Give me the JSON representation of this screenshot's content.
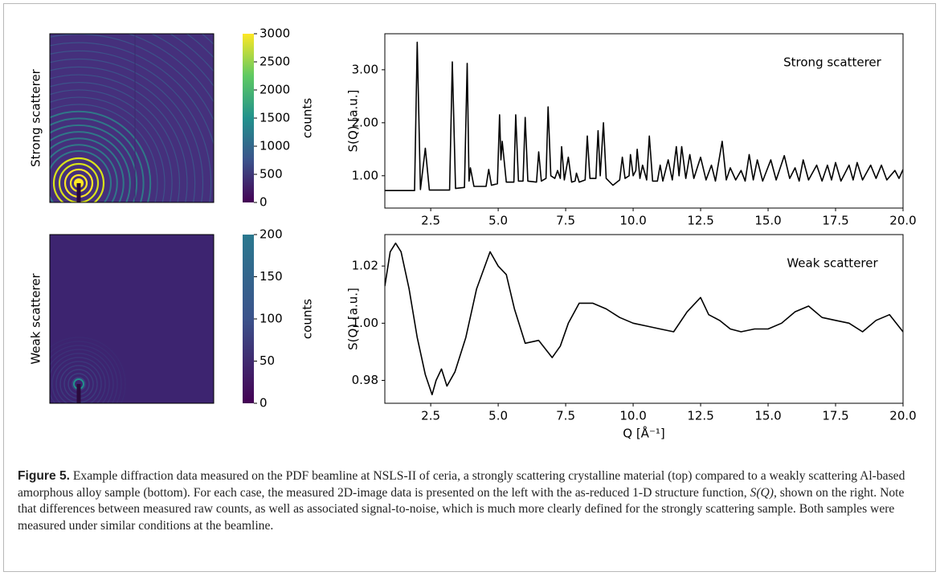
{
  "chart_data": [
    {
      "type": "image",
      "ylabel": "Strong scatterer",
      "colorbar_label": "counts",
      "clim": [
        0,
        3000
      ],
      "cticks": [
        0,
        500,
        1000,
        1500,
        2000,
        2500,
        3000
      ],
      "colormap": [
        "#440154",
        "#3b528b",
        "#21918c",
        "#5ec962",
        "#fde725"
      ]
    },
    {
      "type": "image",
      "ylabel": "Weak scatterer",
      "colorbar_label": "counts",
      "clim": [
        0,
        200
      ],
      "cticks": [
        0,
        50,
        100,
        150,
        200
      ],
      "colormap": [
        "#440154",
        "#3b528b",
        "#2a788e"
      ]
    },
    {
      "type": "line",
      "annotation": "Strong scatterer",
      "ylabel": "S(Q) [a.u.]",
      "color": "#000000",
      "xlim": [
        0.8,
        20
      ],
      "xticks": [
        2.5,
        {
          "value": 5,
          "label": "5.0"
        },
        7.5,
        {
          "value": 10,
          "label": "10.0"
        },
        12.5,
        {
          "value": 15,
          "label": "15.0"
        },
        17.5,
        {
          "value": 20,
          "label": "20.0"
        }
      ],
      "ylim": [
        0.39,
        3.68
      ],
      "yticks": [
        {
          "value": 1,
          "label": "1.00"
        },
        {
          "value": 2,
          "label": "2.00"
        },
        {
          "value": 3,
          "label": "3.00"
        }
      ],
      "x": [
        0.8,
        1.9,
        2.0,
        2.12,
        2.3,
        2.45,
        3.2,
        3.3,
        3.42,
        3.75,
        3.85,
        3.92,
        3.97,
        4.1,
        4.55,
        4.65,
        4.75,
        4.97,
        5.05,
        5.1,
        5.15,
        5.3,
        5.58,
        5.65,
        5.75,
        5.92,
        6.0,
        6.1,
        6.42,
        6.5,
        6.6,
        6.77,
        6.85,
        6.95,
        7.1,
        7.2,
        7.3,
        7.35,
        7.45,
        7.6,
        7.72,
        7.85,
        7.9,
        8.0,
        8.22,
        8.3,
        8.4,
        8.62,
        8.7,
        8.78,
        8.9,
        9.0,
        9.25,
        9.5,
        9.6,
        9.7,
        9.85,
        9.9,
        10.0,
        10.1,
        10.15,
        10.25,
        10.35,
        10.5,
        10.6,
        10.72,
        10.9,
        11.0,
        11.1,
        11.3,
        11.45,
        11.6,
        11.7,
        11.8,
        11.95,
        12.1,
        12.25,
        12.5,
        12.7,
        12.9,
        13.05,
        13.3,
        13.45,
        13.6,
        13.8,
        14.0,
        14.15,
        14.3,
        14.45,
        14.6,
        14.8,
        15.1,
        15.3,
        15.6,
        15.8,
        16.0,
        16.15,
        16.3,
        16.5,
        16.8,
        17.0,
        17.2,
        17.35,
        17.5,
        17.7,
        18.0,
        18.15,
        18.3,
        18.5,
        18.8,
        19.0,
        19.2,
        19.4,
        19.7,
        19.85,
        20.0
      ],
      "values": [
        0.72,
        0.72,
        3.52,
        0.74,
        1.52,
        0.73,
        0.73,
        3.15,
        0.76,
        0.78,
        3.12,
        0.9,
        1.15,
        0.8,
        0.8,
        1.12,
        0.82,
        0.85,
        2.15,
        1.3,
        1.65,
        0.88,
        0.88,
        2.15,
        0.9,
        0.9,
        2.1,
        0.9,
        0.88,
        1.45,
        0.9,
        0.95,
        2.3,
        1.0,
        0.95,
        1.1,
        0.95,
        1.55,
        0.92,
        1.35,
        0.88,
        0.9,
        1.05,
        0.88,
        0.92,
        1.75,
        0.95,
        0.95,
        1.85,
        1.0,
        2.0,
        0.95,
        0.82,
        0.92,
        1.35,
        0.95,
        1.0,
        1.4,
        1.0,
        1.1,
        1.5,
        0.95,
        1.2,
        0.92,
        1.75,
        0.9,
        0.9,
        1.2,
        0.9,
        1.3,
        0.92,
        1.55,
        1.0,
        1.55,
        0.95,
        1.4,
        0.95,
        1.35,
        0.92,
        1.2,
        0.9,
        1.65,
        0.92,
        1.15,
        0.92,
        1.1,
        0.9,
        1.4,
        0.92,
        1.3,
        0.9,
        1.3,
        0.92,
        1.38,
        0.95,
        1.15,
        0.9,
        1.3,
        0.92,
        1.2,
        0.9,
        1.2,
        0.92,
        1.25,
        0.9,
        1.2,
        0.92,
        1.25,
        0.92,
        1.2,
        0.95,
        1.2,
        0.92,
        1.1,
        0.95,
        1.12
      ]
    },
    {
      "type": "line",
      "annotation": "Weak scatterer",
      "ylabel": "S(Q) [a.u.]",
      "xlabel": "Q [Å⁻¹]",
      "color": "#000000",
      "xlim": [
        0.8,
        20
      ],
      "xticks": [
        2.5,
        {
          "value": 5,
          "label": "5.0"
        },
        7.5,
        {
          "value": 10,
          "label": "10.0"
        },
        12.5,
        {
          "value": 15,
          "label": "15.0"
        },
        17.5,
        {
          "value": 20,
          "label": "20.0"
        }
      ],
      "ylim": [
        0.972,
        1.031
      ],
      "yticks": [
        0.98,
        {
          "value": 1,
          "label": "1.00"
        },
        1.02
      ],
      "x": [
        0.8,
        1.0,
        1.2,
        1.4,
        1.7,
        2.0,
        2.3,
        2.55,
        2.7,
        2.9,
        3.1,
        3.4,
        3.8,
        4.2,
        4.7,
        5.0,
        5.3,
        5.6,
        6.0,
        6.5,
        7.0,
        7.3,
        7.6,
        8.0,
        8.5,
        9.0,
        9.5,
        10.0,
        10.5,
        11.0,
        11.5,
        12.0,
        12.5,
        12.8,
        13.2,
        13.6,
        14.0,
        14.5,
        15.0,
        15.5,
        16.0,
        16.5,
        17.0,
        17.5,
        18.0,
        18.5,
        19.0,
        19.5,
        20.0
      ],
      "values": [
        1.013,
        1.025,
        1.028,
        1.025,
        1.012,
        0.995,
        0.982,
        0.975,
        0.98,
        0.984,
        0.978,
        0.983,
        0.995,
        1.012,
        1.025,
        1.02,
        1.017,
        1.005,
        0.993,
        0.994,
        0.988,
        0.992,
        1.0,
        1.007,
        1.007,
        1.005,
        1.002,
        1.0,
        0.999,
        0.998,
        0.997,
        1.004,
        1.009,
        1.003,
        1.001,
        0.998,
        0.997,
        0.998,
        0.998,
        1.0,
        1.004,
        1.006,
        1.002,
        1.001,
        1.0,
        0.997,
        1.001,
        1.003,
        0.997
      ]
    }
  ],
  "caption": {
    "label": "Figure 5.",
    "text": [
      "Example diffraction data measured on the PDF beamline at NSLS-II of ceria, a strongly scattering crystalline material (top) compared to a weakly scattering Al-based amorphous alloy sample (bottom). For each case, the measured 2D-image data is presented on the left with the as-reduced 1-D structure function, ",
      "S(Q)",
      ", shown on the right. Note that differences between measured raw counts, as well as associated signal-to-noise, which is much more clearly defined for the strongly scattering sample. Both samples were measured under similar conditions at the beamline."
    ]
  }
}
